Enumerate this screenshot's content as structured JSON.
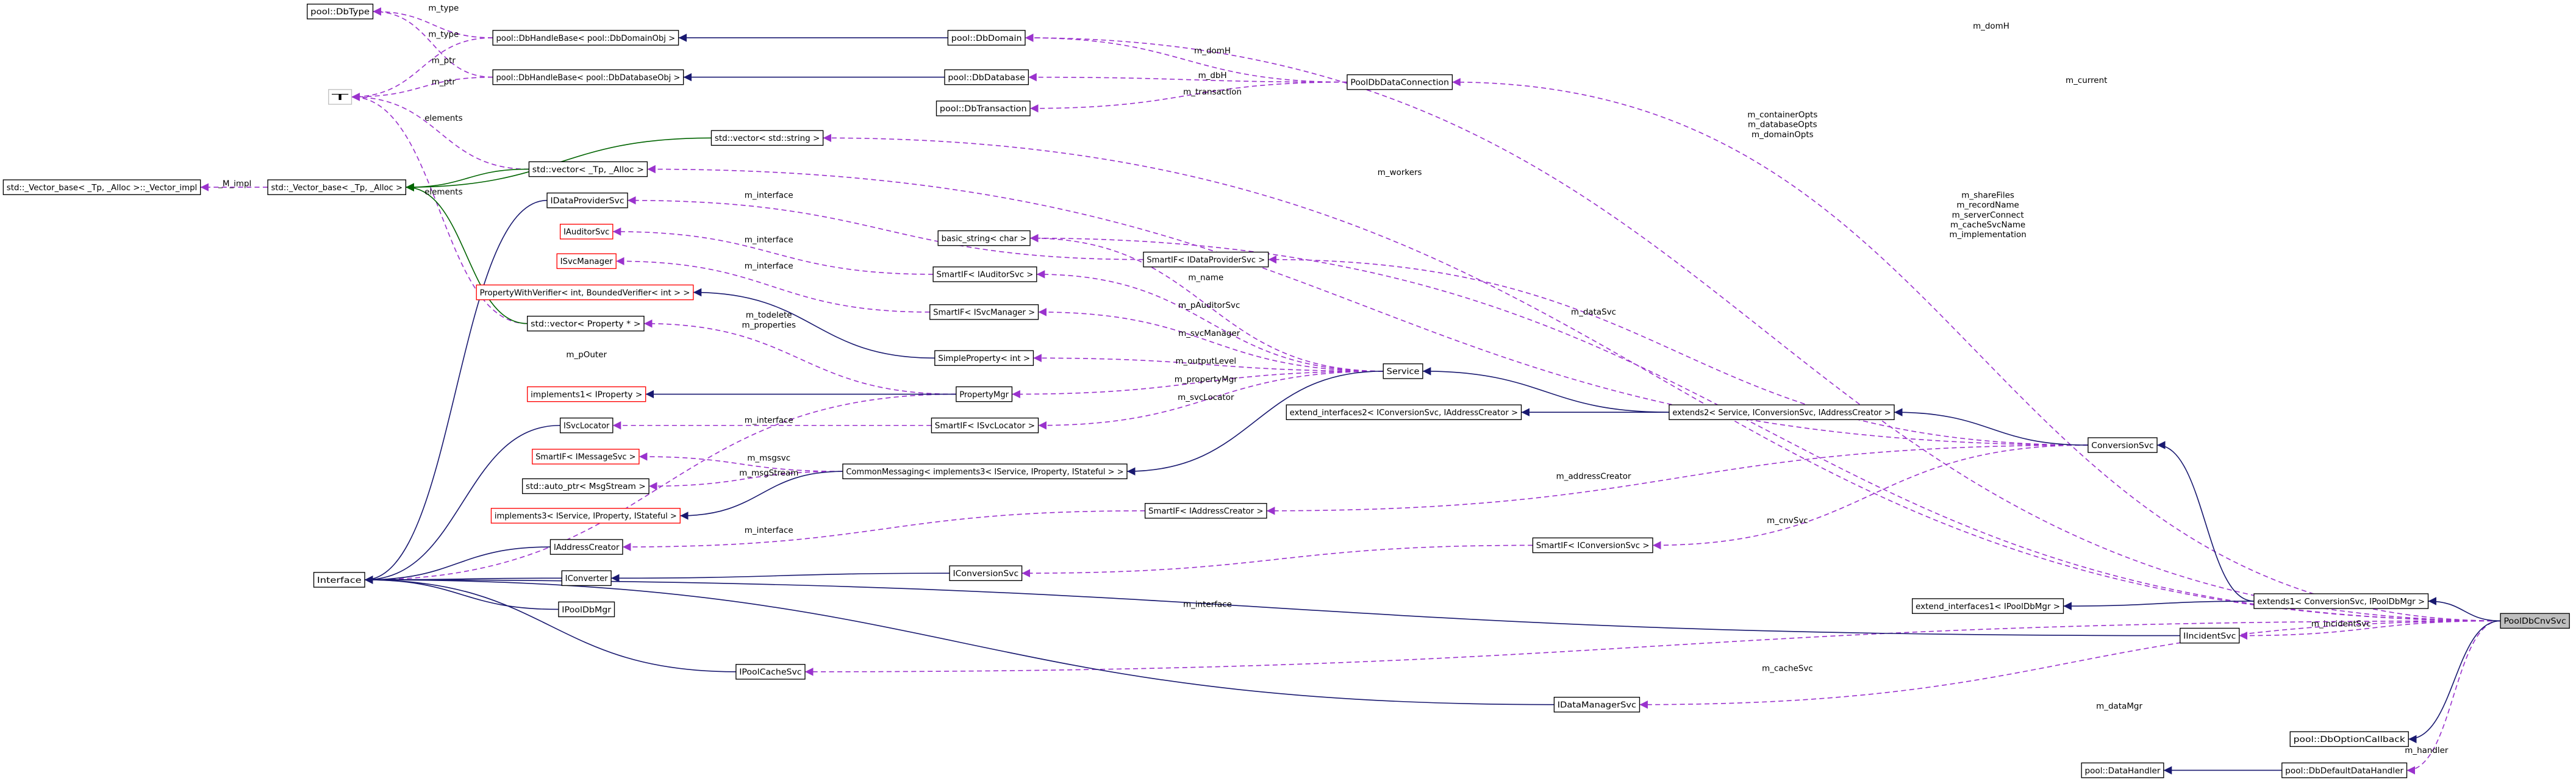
{
  "nodes": [
    "pool::DbType",
    "pool::DbHandleBase< pool::DbDomainObj >",
    "pool::DbDomain",
    "T",
    "pool::DbHandleBase< pool::DbDatabaseObj >",
    "pool::DbDatabase",
    "PoolDbDataConnection",
    "pool::DbTransaction",
    "std::vector< std::string >",
    "std::_Vector_base< _Tp, _Alloc >::_Vector_impl",
    "std::_Vector_base< _Tp, _Alloc >",
    "std::vector< _Tp, _Alloc >",
    "IDataProviderSvc",
    "IAuditorSvc",
    "basic_string< char >",
    "SmartIF< IDataProviderSvc >",
    "ISvcManager",
    "SmartIF< IAuditorSvc >",
    "PropertyWithVerifier< int, BoundedVerifier< int > >",
    "SmartIF< ISvcManager >",
    "std::vector< Property * >",
    "SimpleProperty< int >",
    "Service",
    "implements1< IProperty >",
    "PropertyMgr",
    "extend_interfaces2< IConversionSvc, IAddressCreator >",
    "extends2< Service, IConversionSvc, IAddressCreator >",
    "ISvcLocator",
    "SmartIF< ISvcLocator >",
    "SmartIF< IMessageSvc >",
    "CommonMessaging< implements3< IService, IProperty, IStateful > >",
    "ConversionSvc",
    "std::auto_ptr< MsgStream >",
    "implements3< IService, IProperty, IStateful >",
    "SmartIF< IAddressCreator >",
    "IAddressCreator",
    "SmartIF< IConversionSvc >",
    "Interface",
    "IConverter",
    "IConversionSvc",
    "IPoolDbMgr",
    "extend_interfaces1< IPoolDbMgr >",
    "extends1< ConversionSvc, IPoolDbMgr >",
    "PoolDbCnvSvc",
    "IIncidentSvc",
    "IPoolCacheSvc",
    "IDataManagerSvc",
    "pool::DbOptionCallback",
    "pool::DataHandler",
    "pool::DbDefaultDataHandler"
  ],
  "edge_labels": [
    "m_type",
    "m_type",
    "m_ptr",
    "m_ptr",
    "elements",
    "elements",
    "_M_impl",
    "m_domH",
    "m_domH",
    "m_dbH",
    "m_transaction",
    "m_current",
    "m_containerOpts",
    "m_databaseOpts",
    "m_domainOpts",
    "m_workers",
    "m_interface",
    "m_shareFiles",
    "m_recordName",
    "m_serverConnect",
    "m_cacheSvcName",
    "m_implementation",
    "m_interface",
    "m_name",
    "m_pAuditorSvc",
    "m_interface",
    "m_svcManager",
    "m_dataSvc",
    "m_todelete",
    "m_properties",
    "m_pOuter",
    "m_outputLevel",
    "m_propertyMgr",
    "m_svcLocator",
    "m_interface",
    "m_msgsvc",
    "m_msgStream",
    "m_addressCreator",
    "m_interface",
    "m_cnvSvc",
    "m_interface",
    "m_incidentSvc",
    "m_cacheSvc",
    "m_dataMgr",
    "m_handler"
  ]
}
